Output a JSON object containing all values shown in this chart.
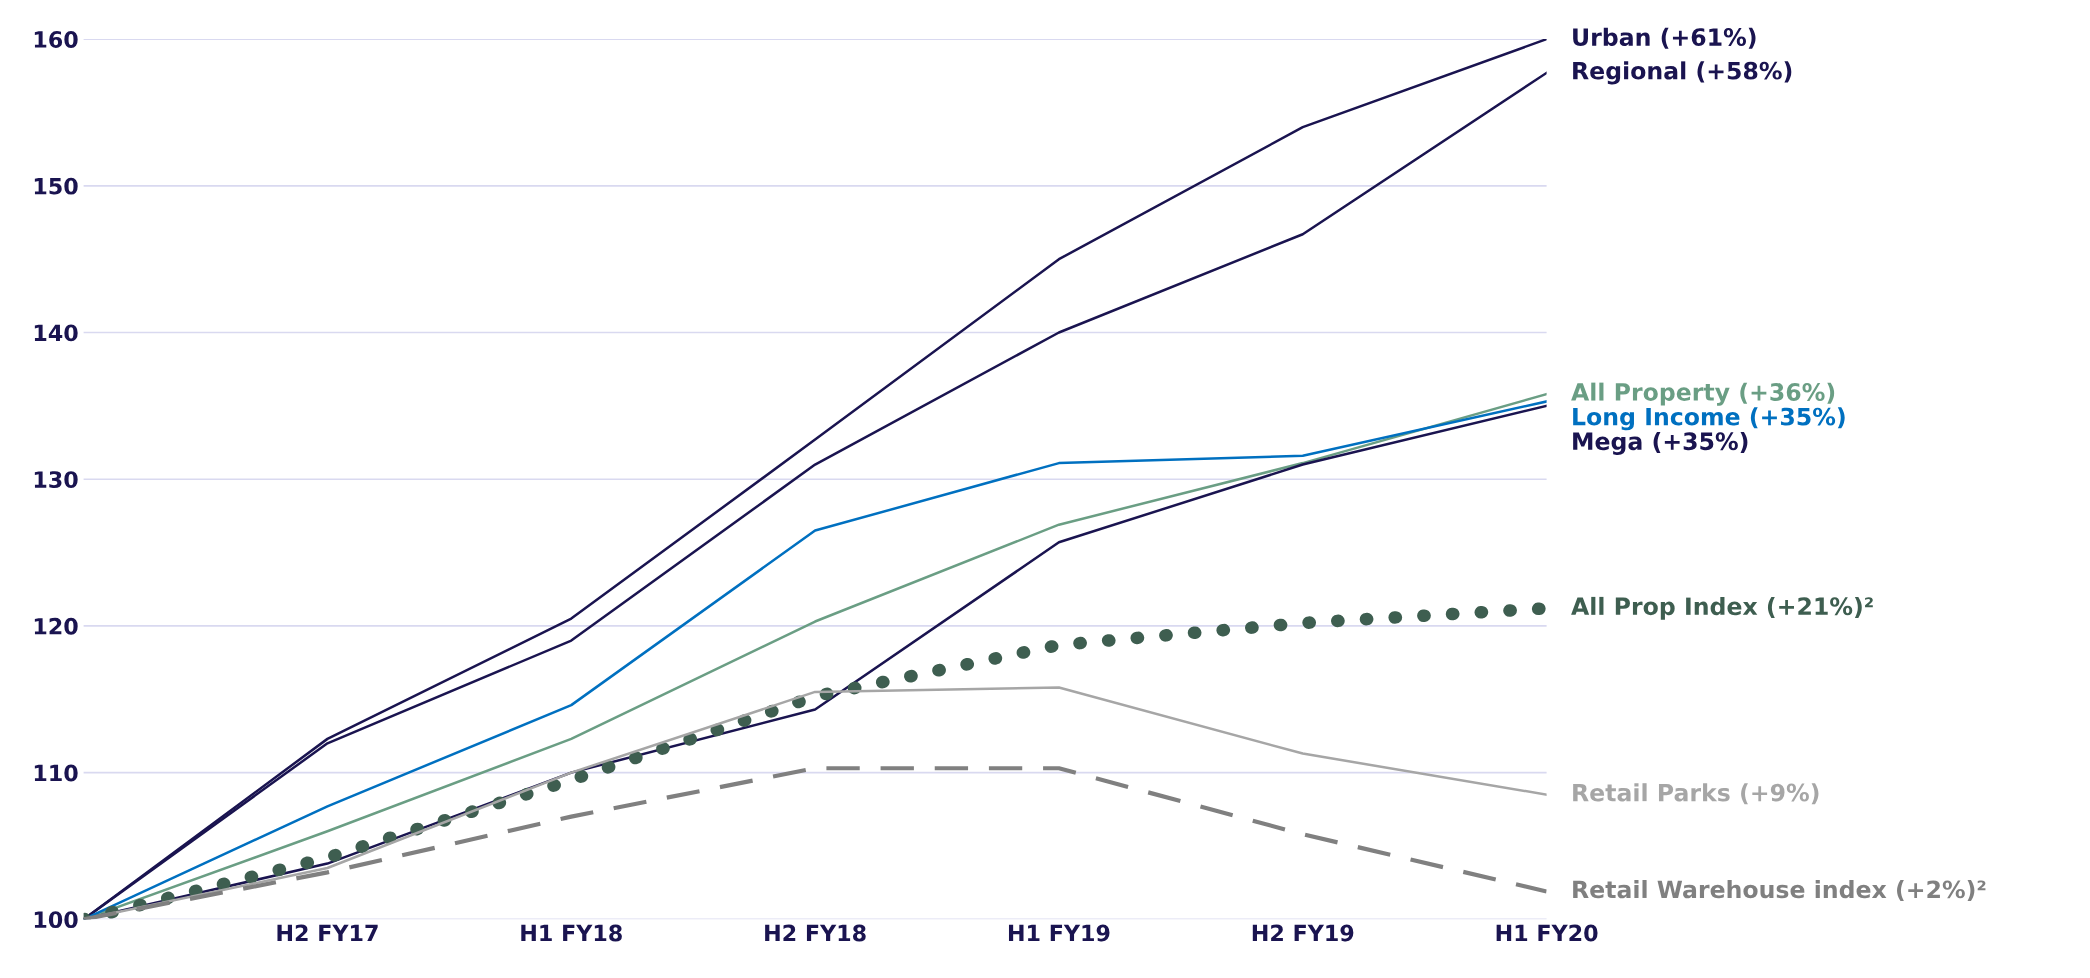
{
  "chart_data": {
    "type": "line",
    "categories": [
      null,
      "H2 FY17",
      "H1 FY18",
      "H2 FY18",
      "H1 FY19",
      "H2 FY19",
      "H1 FY20"
    ],
    "ylim": [
      100,
      160
    ],
    "yticks": [
      100,
      110,
      120,
      130,
      140,
      150,
      160
    ],
    "grid": "y",
    "legend": false,
    "series": [
      {
        "name": "Urban (+61%)",
        "color": "#1a1450",
        "line_style": "solid",
        "values": [
          100,
          112.3,
          120.5,
          132.7,
          145,
          154,
          160
        ]
      },
      {
        "name": "Regional (+58%)",
        "color": "#1a1450",
        "line_style": "solid",
        "values": [
          100,
          112,
          119,
          131,
          140,
          146.7,
          157.7
        ]
      },
      {
        "name": "All Property (+36%)",
        "color": "#6a9e84",
        "line_style": "solid",
        "values": [
          100,
          106,
          112.3,
          120.3,
          126.9,
          131.1,
          135.8
        ]
      },
      {
        "name": "Long Income (+35%)",
        "color": "#0070c0",
        "line_style": "solid",
        "values": [
          100,
          107.7,
          114.6,
          126.5,
          131.1,
          131.6,
          135.3
        ]
      },
      {
        "name": "Mega (+35%)",
        "color": "#1a1450",
        "line_style": "solid",
        "values": [
          100,
          103.8,
          110,
          114.3,
          125.7,
          131,
          135
        ]
      },
      {
        "name": "All Prop Index (+21%)²",
        "color": "#3e5e50",
        "line_style": "dotted",
        "values": [
          100,
          104.2,
          109.5,
          115.2,
          118.7,
          120.2,
          121.2
        ]
      },
      {
        "name": "Retail Parks (+9%)",
        "color": "#a6a6a6",
        "line_style": "solid",
        "values": [
          100,
          103.5,
          110,
          115.5,
          115.8,
          111.3,
          108.5
        ]
      },
      {
        "name": "Retail Warehouse index (+2%)²",
        "color": "#808080",
        "line_style": "dashed",
        "values": [
          100,
          103.2,
          107,
          110.3,
          110.3,
          105.8,
          101.9
        ]
      }
    ]
  }
}
